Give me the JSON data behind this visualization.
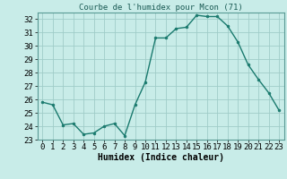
{
  "x": [
    0,
    1,
    2,
    3,
    4,
    5,
    6,
    7,
    8,
    9,
    10,
    11,
    12,
    13,
    14,
    15,
    16,
    17,
    18,
    19,
    20,
    21,
    22,
    23
  ],
  "y": [
    25.8,
    25.6,
    24.1,
    24.2,
    23.4,
    23.5,
    24.0,
    24.2,
    23.3,
    25.6,
    27.3,
    30.6,
    30.6,
    31.3,
    31.4,
    32.3,
    32.2,
    32.2,
    31.5,
    30.3,
    28.6,
    27.5,
    26.5,
    25.2
  ],
  "line_color": "#1a7a6e",
  "marker_color": "#1a7a6e",
  "bg_color": "#c8ece8",
  "grid_color": "#a0ccc8",
  "title": "Courbe de l'humidex pour Mcon (71)",
  "xlabel": "Humidex (Indice chaleur)",
  "ylim": [
    23,
    32.5
  ],
  "xlim": [
    -0.5,
    23.5
  ],
  "yticks": [
    23,
    24,
    25,
    26,
    27,
    28,
    29,
    30,
    31,
    32
  ],
  "xticks": [
    0,
    1,
    2,
    3,
    4,
    5,
    6,
    7,
    8,
    9,
    10,
    11,
    12,
    13,
    14,
    15,
    16,
    17,
    18,
    19,
    20,
    21,
    22,
    23
  ],
  "title_fontsize": 6.5,
  "label_fontsize": 7,
  "tick_fontsize": 6.5,
  "linewidth": 1.0,
  "markersize": 2.0
}
